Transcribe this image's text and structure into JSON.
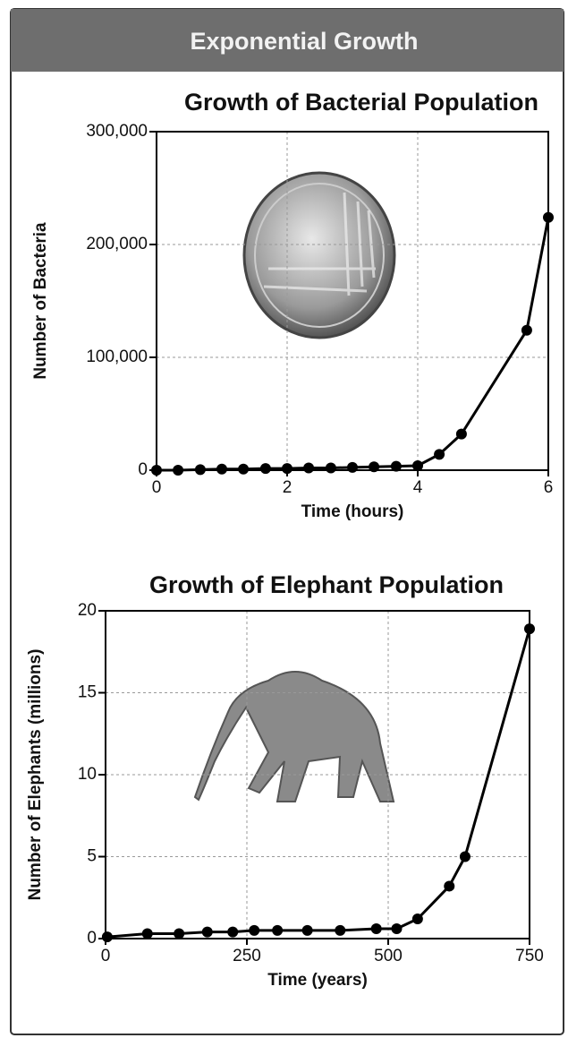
{
  "header": {
    "title": "Exponential Growth"
  },
  "chart_data": [
    {
      "type": "line",
      "title": "Growth of Bacterial Population",
      "x_label": "Time (hours)",
      "y_label": "Number of Bacteria",
      "x": [
        0,
        0.33,
        0.67,
        1,
        1.33,
        1.67,
        2,
        2.33,
        2.67,
        3,
        3.33,
        3.67,
        4,
        4.33,
        4.67,
        5.67,
        6
      ],
      "values": [
        0,
        0,
        500,
        1000,
        1000,
        1500,
        1500,
        2000,
        2000,
        2500,
        3000,
        3500,
        4000,
        14000,
        32000,
        124000,
        224000
      ],
      "color": "#000000",
      "xlim": [
        0,
        6
      ],
      "xticks": [
        0,
        2,
        4,
        6
      ],
      "ylim": [
        0,
        300000
      ],
      "yticks": [
        0,
        {
          "value": 100000,
          "label": "100,000"
        },
        {
          "value": 200000,
          "label": "200,000"
        },
        {
          "value": 300000,
          "label": "300,000"
        }
      ],
      "grid": true
    },
    {
      "type": "line",
      "title": "Growth of Elephant Population",
      "x_label": "Time (years)",
      "y_label": "Number of Elephants (millions)",
      "x": [
        3,
        74,
        130,
        180,
        225,
        263,
        304,
        357,
        415,
        479,
        515,
        552,
        608,
        636,
        750
      ],
      "values": [
        0.1,
        0.3,
        0.3,
        0.4,
        0.4,
        0.5,
        0.5,
        0.5,
        0.5,
        0.6,
        0.6,
        1.2,
        3.2,
        5.0,
        18.9
      ],
      "color": "#000000",
      "xlim": [
        0,
        750
      ],
      "xticks": [
        0,
        250,
        500,
        750
      ],
      "ylim": [
        0,
        20
      ],
      "yticks": [
        0,
        5,
        10,
        15,
        20
      ],
      "grid": true
    }
  ]
}
